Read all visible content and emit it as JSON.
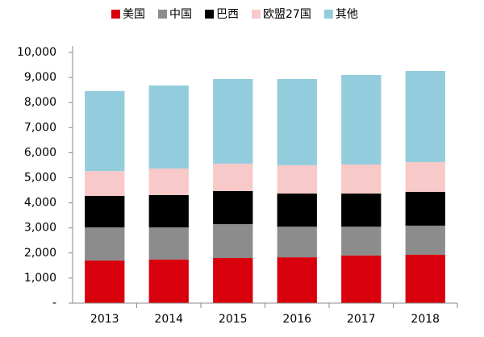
{
  "chart_data": {
    "type": "bar",
    "stacked": true,
    "categories": [
      "2013",
      "2014",
      "2015",
      "2016",
      "2017",
      "2018"
    ],
    "series": [
      {
        "name": "美国",
        "color": "#d9000d",
        "values": [
          1700,
          1740,
          1800,
          1830,
          1900,
          1930
        ]
      },
      {
        "name": "中国",
        "color": "#8c8c8c",
        "values": [
          1320,
          1280,
          1350,
          1220,
          1150,
          1160
        ]
      },
      {
        "name": "巴西",
        "color": "#000000",
        "values": [
          1260,
          1290,
          1320,
          1320,
          1320,
          1350
        ]
      },
      {
        "name": "欧盟27国",
        "color": "#f7c9c9",
        "values": [
          990,
          1060,
          1090,
          1130,
          1160,
          1190
        ]
      },
      {
        "name": "其他",
        "color": "#93cddd",
        "values": [
          3190,
          3310,
          3380,
          3440,
          3570,
          3630
        ]
      }
    ],
    "ylim": [
      0,
      10000
    ],
    "yticks": [
      {
        "value": 0,
        "label": "-"
      },
      {
        "value": 1000,
        "label": "1,000"
      },
      {
        "value": 2000,
        "label": "2,000"
      },
      {
        "value": 3000,
        "label": "3,000"
      },
      {
        "value": 4000,
        "label": "4,000"
      },
      {
        "value": 5000,
        "label": "5,000"
      },
      {
        "value": 6000,
        "label": "6,000"
      },
      {
        "value": 7000,
        "label": "7,000"
      },
      {
        "value": 8000,
        "label": "8,000"
      },
      {
        "value": 9000,
        "label": "9,000"
      },
      {
        "value": 10000,
        "label": "10,000"
      }
    ],
    "legend": "top",
    "grid": false
  }
}
